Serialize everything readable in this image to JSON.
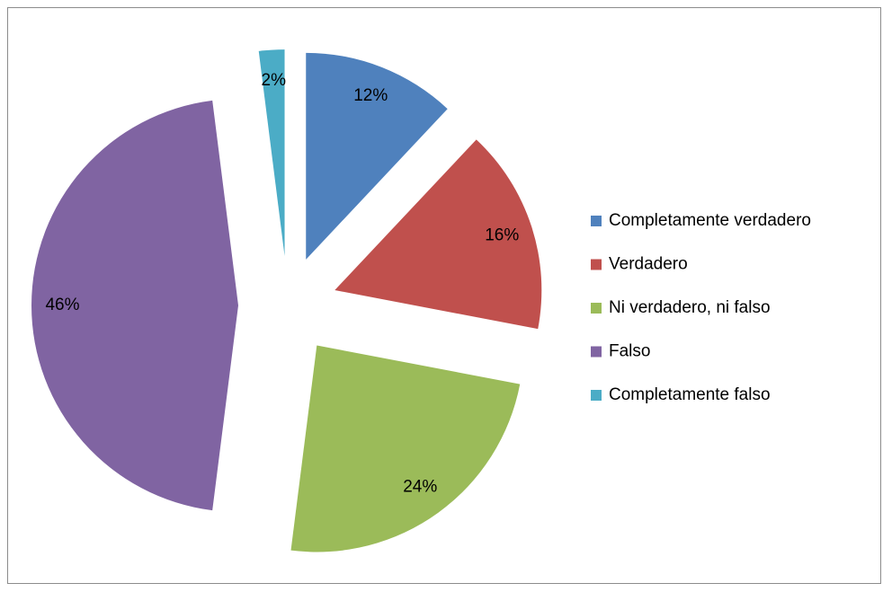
{
  "chart_data": {
    "type": "pie",
    "categories": [
      "Completamente verdadero",
      "Verdadero",
      "Ni verdadero, ni falso",
      "Falso",
      "Completamente falso"
    ],
    "values": [
      12,
      16,
      24,
      46,
      2
    ],
    "value_labels": [
      "12%",
      "16%",
      "24%",
      "46%",
      "2%"
    ],
    "colors": [
      "#4f81bd",
      "#c0504d",
      "#9bbb59",
      "#8064a2",
      "#4bacc6"
    ],
    "legend": "right"
  }
}
